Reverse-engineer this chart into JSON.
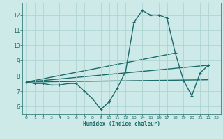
{
  "xlabel": "Humidex (Indice chaleur)",
  "ylabel": "",
  "xlim": [
    -0.5,
    23.5
  ],
  "ylim": [
    5.5,
    12.8
  ],
  "xticks": [
    0,
    1,
    2,
    3,
    4,
    5,
    6,
    7,
    8,
    9,
    10,
    11,
    12,
    13,
    14,
    15,
    16,
    17,
    18,
    19,
    20,
    21,
    22,
    23
  ],
  "yticks": [
    6,
    7,
    8,
    9,
    10,
    11,
    12
  ],
  "bg_color": "#ceeae8",
  "line_color": "#1a6b6b",
  "grid_color": "#aed4d2",
  "line_width": 1.0,
  "marker_size": 3.5,
  "curves": {
    "main": {
      "x": [
        0,
        1,
        2,
        3,
        4,
        5,
        6,
        7,
        8,
        9,
        10,
        11,
        12,
        13,
        14,
        15,
        16,
        17,
        18,
        19,
        20,
        21,
        22
      ],
      "y": [
        7.6,
        7.5,
        7.5,
        7.4,
        7.4,
        7.5,
        7.5,
        7.0,
        6.5,
        5.8,
        6.3,
        7.2,
        8.3,
        11.5,
        12.3,
        12.0,
        12.0,
        11.8,
        9.5,
        7.7,
        6.7,
        8.2,
        8.7
      ]
    },
    "line1": {
      "x": [
        0,
        22
      ],
      "y": [
        7.6,
        8.7
      ]
    },
    "line2": {
      "x": [
        0,
        18
      ],
      "y": [
        7.6,
        9.5
      ]
    },
    "line3": {
      "x": [
        0,
        22
      ],
      "y": [
        7.6,
        7.75
      ]
    }
  }
}
